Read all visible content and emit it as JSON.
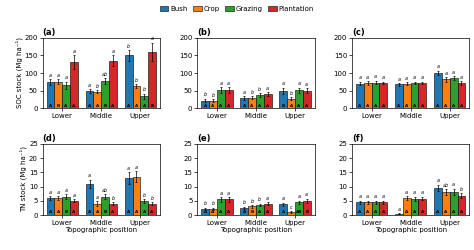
{
  "chart_data": [
    {
      "type": "bar",
      "title": "(a)",
      "ylabel": "SOC stock (Mg ha⁻¹)",
      "categories": [
        "Lower",
        "Middle",
        "Upper"
      ],
      "ylim": [
        0,
        200
      ],
      "yticks": [
        0,
        50,
        100,
        150,
        200
      ],
      "legend": "upper center",
      "series": [
        {
          "name": "Bush",
          "values": [
            75,
            50,
            150
          ],
          "errors": [
            8,
            5,
            15
          ],
          "upper_labels": [
            "a",
            "a",
            "b"
          ],
          "lower_labels": [
            "A",
            "A",
            "A"
          ]
        },
        {
          "name": "Crop",
          "values": [
            75,
            47,
            63
          ],
          "errors": [
            7,
            4,
            6
          ],
          "upper_labels": [
            "a",
            "b",
            "b"
          ],
          "lower_labels": [
            "B",
            "A",
            "A"
          ]
        },
        {
          "name": "Grazing",
          "values": [
            65,
            78,
            35
          ],
          "errors": [
            10,
            8,
            7
          ],
          "upper_labels": [
            "a",
            "ab",
            "b"
          ],
          "lower_labels": [
            "A",
            "B",
            "A"
          ]
        },
        {
          "name": "Plantation",
          "values": [
            130,
            135,
            160
          ],
          "errors": [
            20,
            15,
            25
          ],
          "upper_labels": [
            "a",
            "a",
            "a"
          ],
          "lower_labels": [
            "A",
            "A",
            "B"
          ]
        }
      ]
    },
    {
      "type": "bar",
      "title": "(b)",
      "categories": [
        "Lower",
        "Middle",
        "Upper"
      ],
      "ylim": [
        0,
        200
      ],
      "yticks": [
        0,
        50,
        100,
        150,
        200
      ],
      "series": [
        {
          "name": "Bush",
          "values": [
            22,
            30,
            50
          ],
          "errors": [
            5,
            5,
            8
          ],
          "upper_labels": [
            "b",
            "a",
            "a"
          ],
          "lower_labels": [
            "A",
            "A",
            "B"
          ]
        },
        {
          "name": "Crop",
          "values": [
            22,
            30,
            28
          ],
          "errors": [
            4,
            4,
            4
          ],
          "upper_labels": [
            "b",
            "b",
            "b"
          ],
          "lower_labels": [
            "A",
            "A",
            "A"
          ]
        },
        {
          "name": "Grazing",
          "values": [
            52,
            37,
            52
          ],
          "errors": [
            8,
            6,
            7
          ],
          "upper_labels": [
            "a",
            "b",
            "a"
          ],
          "lower_labels": [
            "A",
            "A",
            "A"
          ]
        },
        {
          "name": "Plantation",
          "values": [
            52,
            40,
            50
          ],
          "errors": [
            8,
            6,
            7
          ],
          "upper_labels": [
            "a",
            "a",
            "a"
          ],
          "lower_labels": [
            "A",
            "A",
            "A"
          ]
        }
      ]
    },
    {
      "type": "bar",
      "title": "(c)",
      "categories": [
        "Lower",
        "Middle",
        "Upper"
      ],
      "ylim": [
        0,
        200
      ],
      "yticks": [
        0,
        50,
        100,
        150,
        200
      ],
      "series": [
        {
          "name": "Bush",
          "values": [
            70,
            68,
            100
          ],
          "errors": [
            5,
            4,
            7
          ],
          "upper_labels": [
            "a",
            "a",
            "a"
          ],
          "lower_labels": [
            "A",
            "A",
            "A"
          ]
        },
        {
          "name": "Crop",
          "values": [
            72,
            70,
            82
          ],
          "errors": [
            5,
            4,
            6
          ],
          "upper_labels": [
            "a",
            "a",
            "a"
          ],
          "lower_labels": [
            "A",
            "A",
            "A"
          ]
        },
        {
          "name": "Grazing",
          "values": [
            73,
            72,
            85
          ],
          "errors": [
            5,
            4,
            6
          ],
          "upper_labels": [
            "a",
            "a",
            "a"
          ],
          "lower_labels": [
            "A",
            "A",
            "A"
          ]
        },
        {
          "name": "Plantation",
          "values": [
            72,
            72,
            72
          ],
          "errors": [
            4,
            4,
            5
          ],
          "upper_labels": [
            "a",
            "a",
            "a"
          ],
          "lower_labels": [
            "A",
            "A",
            "A"
          ]
        }
      ]
    },
    {
      "type": "bar",
      "title": "(d)",
      "ylabel": "TN stock (Mg ha⁻¹)",
      "xlabel": "Topographic position",
      "categories": [
        "Lower",
        "Middle",
        "Upper"
      ],
      "ylim": [
        0,
        25
      ],
      "yticks": [
        0,
        5,
        10,
        15,
        20,
        25
      ],
      "series": [
        {
          "name": "Bush",
          "values": [
            6.0,
            11.0,
            13.0
          ],
          "errors": [
            0.7,
            1.5,
            2.0
          ],
          "upper_labels": [
            "a",
            "a",
            "a"
          ],
          "lower_labels": [
            "A",
            "A",
            "A"
          ]
        },
        {
          "name": "Crop",
          "values": [
            6.0,
            4.0,
            13.5
          ],
          "errors": [
            0.7,
            0.8,
            2.0
          ],
          "upper_labels": [
            "a",
            "a",
            "a"
          ],
          "lower_labels": [
            "A",
            "A",
            "A"
          ]
        },
        {
          "name": "Grazing",
          "values": [
            6.5,
            6.5,
            5.0
          ],
          "errors": [
            0.8,
            0.8,
            0.6
          ],
          "upper_labels": [
            "a",
            "ab",
            "b"
          ],
          "lower_labels": [
            "B",
            "B",
            "A"
          ]
        },
        {
          "name": "Plantation",
          "values": [
            5.0,
            4.0,
            4.0
          ],
          "errors": [
            0.5,
            0.5,
            0.5
          ],
          "upper_labels": [
            "a",
            "b",
            "b"
          ],
          "lower_labels": [
            "A",
            "A",
            "A"
          ]
        }
      ]
    },
    {
      "type": "bar",
      "title": "(e)",
      "xlabel": "Topographic position",
      "categories": [
        "Lower",
        "Middle",
        "Upper"
      ],
      "ylim": [
        0,
        25
      ],
      "yticks": [
        0,
        5,
        10,
        15,
        20,
        25
      ],
      "series": [
        {
          "name": "Bush",
          "values": [
            2.2,
            2.5,
            3.8
          ],
          "errors": [
            0.4,
            0.4,
            0.6
          ],
          "upper_labels": [
            "b",
            "b",
            "a"
          ],
          "lower_labels": [
            "A",
            "A",
            "A"
          ]
        },
        {
          "name": "Crop",
          "values": [
            2.2,
            3.0,
            1.0
          ],
          "errors": [
            0.3,
            0.4,
            0.3
          ],
          "upper_labels": [
            "b",
            "b",
            "c"
          ],
          "lower_labels": [
            "A",
            "B",
            null
          ]
        },
        {
          "name": "Grazing",
          "values": [
            5.5,
            3.5,
            4.5
          ],
          "errors": [
            0.8,
            0.5,
            0.6
          ],
          "upper_labels": [
            "a",
            "b",
            "a"
          ],
          "lower_labels": [
            "A",
            "A",
            "AB"
          ]
        },
        {
          "name": "Plantation",
          "values": [
            5.5,
            4.0,
            5.0
          ],
          "errors": [
            0.8,
            0.5,
            0.8
          ],
          "upper_labels": [
            "a",
            "a",
            "a"
          ],
          "lower_labels": [
            "A",
            "A",
            "B"
          ]
        }
      ]
    },
    {
      "type": "bar",
      "title": "(f)",
      "xlabel": "Topographic position",
      "categories": [
        "Lower",
        "Middle",
        "Upper"
      ],
      "ylim": [
        0,
        25
      ],
      "yticks": [
        0,
        5,
        10,
        15,
        20,
        25
      ],
      "series": [
        {
          "name": "Bush",
          "values": [
            4.5,
            0.5,
            9.5
          ],
          "errors": [
            0.6,
            0.2,
            1.2
          ],
          "upper_labels": [
            "a",
            "a",
            "a"
          ],
          "lower_labels": [
            "A",
            null,
            "A"
          ]
        },
        {
          "name": "Crop",
          "values": [
            4.5,
            6.0,
            8.0
          ],
          "errors": [
            0.5,
            0.7,
            1.0
          ],
          "upper_labels": [
            "a",
            "a",
            "ab"
          ],
          "lower_labels": [
            "A",
            "A",
            "A"
          ]
        },
        {
          "name": "Grazing",
          "values": [
            4.5,
            5.8,
            8.2
          ],
          "errors": [
            0.6,
            0.7,
            1.0
          ],
          "upper_labels": [
            "a",
            "a",
            "a"
          ],
          "lower_labels": [
            "A",
            "A",
            "A"
          ]
        },
        {
          "name": "Plantation",
          "values": [
            4.5,
            5.8,
            6.8
          ],
          "errors": [
            0.5,
            0.6,
            0.8
          ],
          "upper_labels": [
            "a",
            "a",
            "b"
          ],
          "lower_labels": [
            "A",
            "A",
            "A"
          ]
        }
      ]
    }
  ]
}
